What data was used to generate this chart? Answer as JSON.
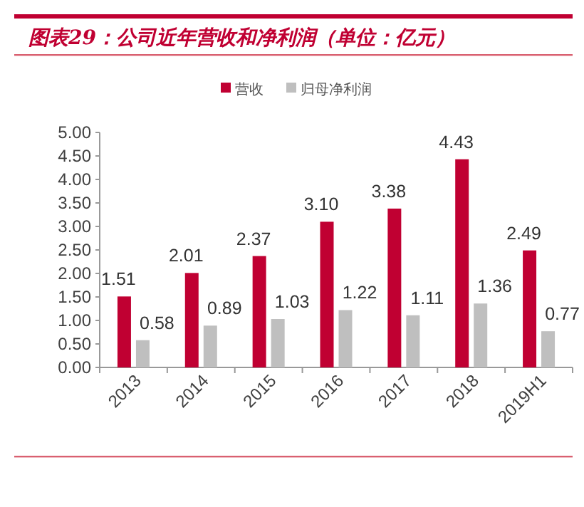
{
  "chart_data": {
    "type": "bar",
    "title": "图表29：公司近年营收和净利润（单位：亿元）",
    "categories": [
      "2013",
      "2014",
      "2015",
      "2016",
      "2017",
      "2018",
      "2019H1"
    ],
    "series": [
      {
        "name": "营收",
        "color": "#c00032",
        "values": [
          1.51,
          2.01,
          2.37,
          3.1,
          3.38,
          4.43,
          2.49
        ],
        "value_labels": [
          "1.51",
          "2.01",
          "2.37",
          "3.10",
          "3.38",
          "4.43",
          "2.49"
        ]
      },
      {
        "name": "归母净利润",
        "color": "#bfbfbf",
        "values": [
          0.58,
          0.89,
          1.03,
          1.22,
          1.11,
          1.36,
          0.77
        ],
        "value_labels": [
          "0.58",
          "0.89",
          "1.03",
          "1.22",
          "1.11",
          "1.36",
          "0.77"
        ]
      }
    ],
    "ylim": [
      0,
      5
    ],
    "yticks": [
      {
        "value": 0,
        "label": "0.00"
      },
      {
        "value": 0.5,
        "label": "0.50"
      },
      {
        "value": 1,
        "label": "1.00"
      },
      {
        "value": 1.5,
        "label": "1.50"
      },
      {
        "value": 2,
        "label": "2.00"
      },
      {
        "value": 2.5,
        "label": "2.50"
      },
      {
        "value": 3,
        "label": "3.00"
      },
      {
        "value": 3.5,
        "label": "3.50"
      },
      {
        "value": 4,
        "label": "4.00"
      },
      {
        "value": 4.5,
        "label": "4.50"
      },
      {
        "value": 5,
        "label": "5.00"
      }
    ],
    "legend": "top",
    "grid": false
  }
}
